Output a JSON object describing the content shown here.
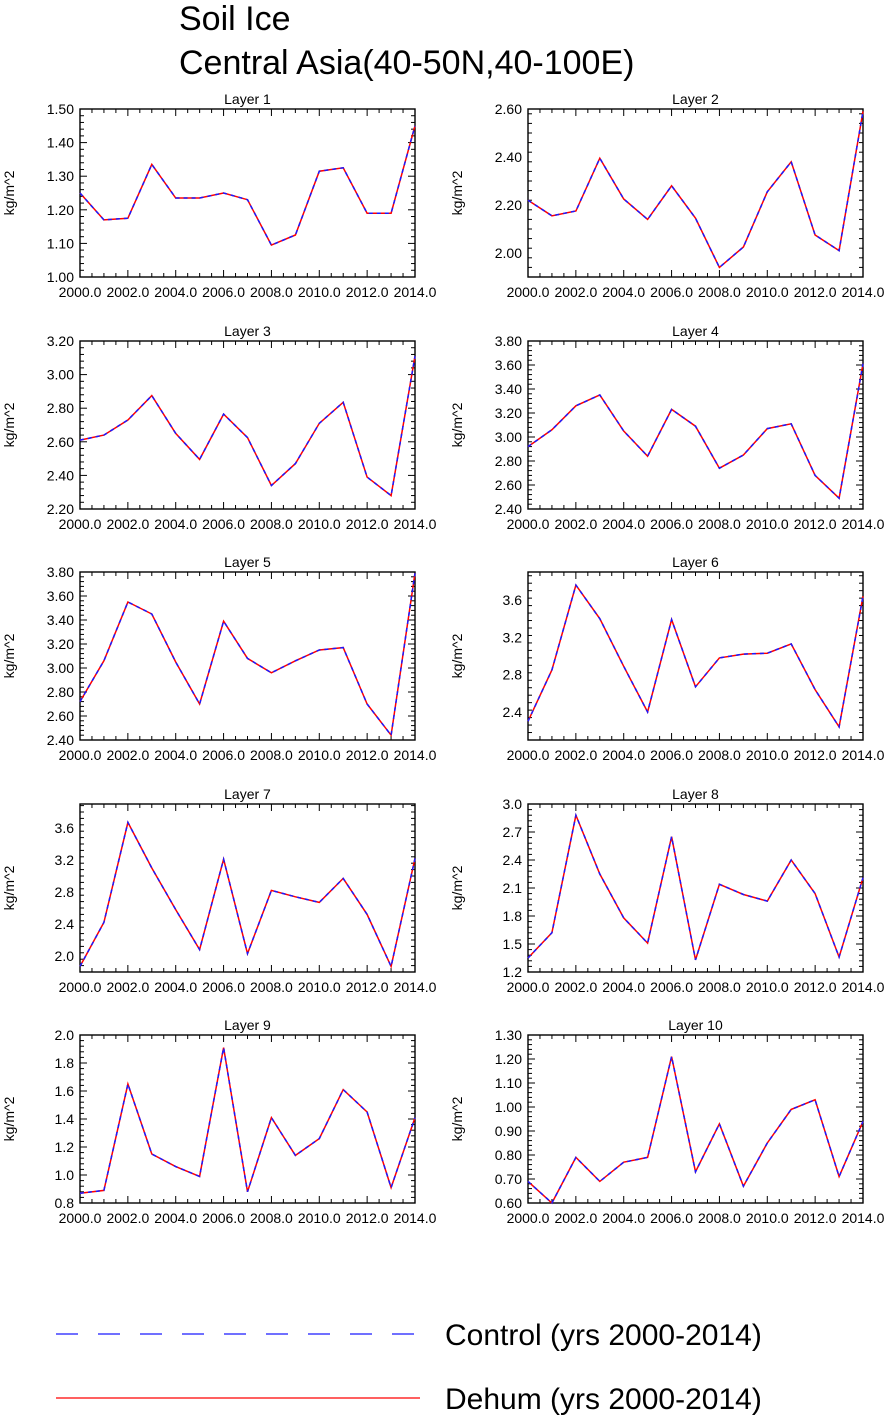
{
  "title": [
    "Soil Ice",
    "Central Asia(40-50N,40-100E)"
  ],
  "legend": [
    {
      "label": "Control (yrs 2000-2014)",
      "color": "#1a1aff",
      "style": "dashed"
    },
    {
      "label": "Dehum (yrs 2000-2014)",
      "color": "#ff0000",
      "style": "solid"
    }
  ],
  "chart_data": [
    {
      "type": "line",
      "title": "Layer 1",
      "ylabel": "kg/m^2",
      "xlim": [
        2000,
        2014
      ],
      "ylim": [
        1.0,
        1.5
      ],
      "yticks": [
        "1.00",
        "1.10",
        "1.20",
        "1.30",
        "1.40",
        "1.50"
      ],
      "ytick_values": [
        1.0,
        1.1,
        1.2,
        1.3,
        1.4,
        1.5
      ],
      "xticks": [
        "2000.0",
        "2002.0",
        "2004.0",
        "2006.0",
        "2008.0",
        "2010.0",
        "2012.0",
        "2014.0"
      ],
      "x": [
        2000,
        2001,
        2002,
        2003,
        2004,
        2005,
        2006,
        2007,
        2008,
        2009,
        2010,
        2011,
        2012,
        2013,
        2014
      ],
      "series": [
        {
          "name": "Control (yrs 2000-2014)",
          "values": [
            1.25,
            1.17,
            1.175,
            1.335,
            1.235,
            1.235,
            1.25,
            1.23,
            1.095,
            1.125,
            1.315,
            1.325,
            1.19,
            1.19,
            1.45
          ]
        },
        {
          "name": "Dehum (yrs 2000-2014)",
          "values": [
            1.25,
            1.17,
            1.175,
            1.335,
            1.235,
            1.235,
            1.25,
            1.23,
            1.095,
            1.125,
            1.315,
            1.325,
            1.19,
            1.19,
            1.45
          ]
        }
      ]
    },
    {
      "type": "line",
      "title": "Layer 2",
      "ylabel": "kg/m^2",
      "xlim": [
        2000,
        2014
      ],
      "ylim": [
        1.9,
        2.6
      ],
      "yticks": [
        "2.00",
        "2.20",
        "2.40",
        "2.60"
      ],
      "ytick_values": [
        2.0,
        2.2,
        2.4,
        2.6
      ],
      "xticks": [
        "2000.0",
        "2002.0",
        "2004.0",
        "2006.0",
        "2008.0",
        "2010.0",
        "2012.0",
        "2014.0"
      ],
      "x": [
        2000,
        2001,
        2002,
        2003,
        2004,
        2005,
        2006,
        2007,
        2008,
        2009,
        2010,
        2011,
        2012,
        2013,
        2014
      ],
      "series": [
        {
          "name": "Control (yrs 2000-2014)",
          "values": [
            2.22,
            2.155,
            2.175,
            2.395,
            2.225,
            2.14,
            2.28,
            2.145,
            1.94,
            2.025,
            2.255,
            2.38,
            2.075,
            2.01,
            2.59
          ]
        },
        {
          "name": "Dehum (yrs 2000-2014)",
          "values": [
            2.22,
            2.155,
            2.175,
            2.395,
            2.225,
            2.14,
            2.28,
            2.145,
            1.94,
            2.025,
            2.255,
            2.38,
            2.075,
            2.01,
            2.59
          ]
        }
      ]
    },
    {
      "type": "line",
      "title": "Layer 3",
      "ylabel": "kg/m^2",
      "xlim": [
        2000,
        2014
      ],
      "ylim": [
        2.2,
        3.2
      ],
      "yticks": [
        "2.20",
        "2.40",
        "2.60",
        "2.80",
        "3.00",
        "3.20"
      ],
      "ytick_values": [
        2.2,
        2.4,
        2.6,
        2.8,
        3.0,
        3.2
      ],
      "xticks": [
        "2000.0",
        "2002.0",
        "2004.0",
        "2006.0",
        "2008.0",
        "2010.0",
        "2012.0",
        "2014.0"
      ],
      "x": [
        2000,
        2001,
        2002,
        2003,
        2004,
        2005,
        2006,
        2007,
        2008,
        2009,
        2010,
        2011,
        2012,
        2013,
        2014
      ],
      "series": [
        {
          "name": "Control (yrs 2000-2014)",
          "values": [
            2.61,
            2.64,
            2.73,
            2.875,
            2.65,
            2.495,
            2.765,
            2.625,
            2.34,
            2.47,
            2.71,
            2.835,
            2.39,
            2.28,
            3.11
          ]
        },
        {
          "name": "Dehum (yrs 2000-2014)",
          "values": [
            2.61,
            2.64,
            2.73,
            2.875,
            2.65,
            2.495,
            2.765,
            2.625,
            2.34,
            2.47,
            2.71,
            2.835,
            2.39,
            2.28,
            3.11
          ]
        }
      ]
    },
    {
      "type": "line",
      "title": "Layer 4",
      "ylabel": "kg/m^2",
      "xlim": [
        2000,
        2014
      ],
      "ylim": [
        2.4,
        3.8
      ],
      "yticks": [
        "2.40",
        "2.60",
        "2.80",
        "3.00",
        "3.20",
        "3.40",
        "3.60",
        "3.80"
      ],
      "ytick_values": [
        2.4,
        2.6,
        2.8,
        3.0,
        3.2,
        3.4,
        3.6,
        3.8
      ],
      "xticks": [
        "2000.0",
        "2002.0",
        "2004.0",
        "2006.0",
        "2008.0",
        "2010.0",
        "2012.0",
        "2014.0"
      ],
      "x": [
        2000,
        2001,
        2002,
        2003,
        2004,
        2005,
        2006,
        2007,
        2008,
        2009,
        2010,
        2011,
        2012,
        2013,
        2014
      ],
      "series": [
        {
          "name": "Control (yrs 2000-2014)",
          "values": [
            2.92,
            3.06,
            3.26,
            3.35,
            3.05,
            2.84,
            3.23,
            3.09,
            2.74,
            2.85,
            3.07,
            3.11,
            2.68,
            2.49,
            3.61
          ]
        },
        {
          "name": "Dehum (yrs 2000-2014)",
          "values": [
            2.92,
            3.06,
            3.26,
            3.35,
            3.05,
            2.84,
            3.23,
            3.09,
            2.74,
            2.85,
            3.07,
            3.11,
            2.68,
            2.49,
            3.61
          ]
        }
      ]
    },
    {
      "type": "line",
      "title": "Layer 5",
      "ylabel": "kg/m^2",
      "xlim": [
        2000,
        2014
      ],
      "ylim": [
        2.4,
        3.8
      ],
      "yticks": [
        "2.40",
        "2.60",
        "2.80",
        "3.00",
        "3.20",
        "3.40",
        "3.60",
        "3.80"
      ],
      "ytick_values": [
        2.4,
        2.6,
        2.8,
        3.0,
        3.2,
        3.4,
        3.6,
        3.8
      ],
      "xticks": [
        "2000.0",
        "2002.0",
        "2004.0",
        "2006.0",
        "2008.0",
        "2010.0",
        "2012.0",
        "2014.0"
      ],
      "x": [
        2000,
        2001,
        2002,
        2003,
        2004,
        2005,
        2006,
        2007,
        2008,
        2009,
        2010,
        2011,
        2012,
        2013,
        2014
      ],
      "series": [
        {
          "name": "Control (yrs 2000-2014)",
          "values": [
            2.72,
            3.06,
            3.55,
            3.45,
            3.05,
            2.7,
            3.39,
            3.08,
            2.96,
            3.06,
            3.15,
            3.17,
            2.7,
            2.44,
            3.79
          ]
        },
        {
          "name": "Dehum (yrs 2000-2014)",
          "values": [
            2.72,
            3.06,
            3.55,
            3.45,
            3.05,
            2.7,
            3.39,
            3.08,
            2.96,
            3.06,
            3.15,
            3.17,
            2.7,
            2.44,
            3.79
          ]
        }
      ]
    },
    {
      "type": "line",
      "title": "Layer 6",
      "ylabel": "kg/m^2",
      "xlim": [
        2000,
        2014
      ],
      "ylim": [
        2.1,
        3.9
      ],
      "yticks": [
        "2.4",
        "2.8",
        "3.2",
        "3.6"
      ],
      "ytick_values": [
        2.4,
        2.8,
        3.2,
        3.6
      ],
      "xticks": [
        "2000.0",
        "2002.0",
        "2004.0",
        "2006.0",
        "2008.0",
        "2010.0",
        "2012.0",
        "2014.0"
      ],
      "x": [
        2000,
        2001,
        2002,
        2003,
        2004,
        2005,
        2006,
        2007,
        2008,
        2009,
        2010,
        2011,
        2012,
        2013,
        2014
      ],
      "series": [
        {
          "name": "Control (yrs 2000-2014)",
          "values": [
            2.3,
            2.85,
            3.76,
            3.4,
            2.89,
            2.4,
            3.39,
            2.67,
            2.98,
            3.02,
            3.03,
            3.13,
            2.64,
            2.24,
            3.64
          ]
        },
        {
          "name": "Dehum (yrs 2000-2014)",
          "values": [
            2.3,
            2.85,
            3.76,
            3.4,
            2.89,
            2.4,
            3.39,
            2.67,
            2.98,
            3.02,
            3.03,
            3.13,
            2.64,
            2.24,
            3.64
          ]
        }
      ]
    },
    {
      "type": "line",
      "title": "Layer 7",
      "ylabel": "kg/m^2",
      "xlim": [
        2000,
        2014
      ],
      "ylim": [
        1.8,
        3.9
      ],
      "yticks": [
        "2.0",
        "2.4",
        "2.8",
        "3.2",
        "3.6"
      ],
      "ytick_values": [
        2.0,
        2.4,
        2.8,
        3.2,
        3.6
      ],
      "xticks": [
        "2000.0",
        "2002.0",
        "2004.0",
        "2006.0",
        "2008.0",
        "2010.0",
        "2012.0",
        "2014.0"
      ],
      "x": [
        2000,
        2001,
        2002,
        2003,
        2004,
        2005,
        2006,
        2007,
        2008,
        2009,
        2010,
        2011,
        2012,
        2013,
        2014
      ],
      "series": [
        {
          "name": "Control (yrs 2000-2014)",
          "values": [
            1.87,
            2.42,
            3.67,
            3.1,
            2.58,
            2.08,
            3.21,
            2.03,
            2.82,
            2.74,
            2.67,
            2.97,
            2.52,
            1.87,
            3.22
          ]
        },
        {
          "name": "Dehum (yrs 2000-2014)",
          "values": [
            1.87,
            2.42,
            3.67,
            3.1,
            2.58,
            2.08,
            3.21,
            2.03,
            2.82,
            2.74,
            2.67,
            2.97,
            2.52,
            1.87,
            3.22
          ]
        }
      ]
    },
    {
      "type": "line",
      "title": "Layer 8",
      "ylabel": "kg/m^2",
      "xlim": [
        2000,
        2014
      ],
      "ylim": [
        1.2,
        3.0
      ],
      "yticks": [
        "1.2",
        "1.5",
        "1.8",
        "2.1",
        "2.4",
        "2.7",
        "3.0"
      ],
      "ytick_values": [
        1.2,
        1.5,
        1.8,
        2.1,
        2.4,
        2.7,
        3.0
      ],
      "xticks": [
        "2000.0",
        "2002.0",
        "2004.0",
        "2006.0",
        "2008.0",
        "2010.0",
        "2012.0",
        "2014.0"
      ],
      "x": [
        2000,
        2001,
        2002,
        2003,
        2004,
        2005,
        2006,
        2007,
        2008,
        2009,
        2010,
        2011,
        2012,
        2013,
        2014
      ],
      "series": [
        {
          "name": "Control (yrs 2000-2014)",
          "values": [
            1.35,
            1.62,
            2.88,
            2.25,
            1.78,
            1.51,
            2.65,
            1.33,
            2.14,
            2.03,
            1.96,
            2.4,
            2.04,
            1.36,
            2.21
          ]
        },
        {
          "name": "Dehum (yrs 2000-2014)",
          "values": [
            1.35,
            1.62,
            2.88,
            2.25,
            1.78,
            1.51,
            2.65,
            1.33,
            2.14,
            2.03,
            1.96,
            2.4,
            2.04,
            1.36,
            2.21
          ]
        }
      ]
    },
    {
      "type": "line",
      "title": "Layer 9",
      "ylabel": "kg/m^2",
      "xlim": [
        2000,
        2014
      ],
      "ylim": [
        0.8,
        2.0
      ],
      "yticks": [
        "0.8",
        "1.0",
        "1.2",
        "1.4",
        "1.6",
        "1.8",
        "2.0"
      ],
      "ytick_values": [
        0.8,
        1.0,
        1.2,
        1.4,
        1.6,
        1.8,
        2.0
      ],
      "xticks": [
        "2000.0",
        "2002.0",
        "2004.0",
        "2006.0",
        "2008.0",
        "2010.0",
        "2012.0",
        "2014.0"
      ],
      "x": [
        2000,
        2001,
        2002,
        2003,
        2004,
        2005,
        2006,
        2007,
        2008,
        2009,
        2010,
        2011,
        2012,
        2013,
        2014
      ],
      "series": [
        {
          "name": "Control (yrs 2000-2014)",
          "values": [
            0.87,
            0.89,
            1.65,
            1.15,
            1.06,
            0.99,
            1.91,
            0.88,
            1.41,
            1.14,
            1.26,
            1.61,
            1.45,
            0.91,
            1.41
          ]
        },
        {
          "name": "Dehum (yrs 2000-2014)",
          "values": [
            0.87,
            0.89,
            1.65,
            1.15,
            1.06,
            0.99,
            1.91,
            0.88,
            1.41,
            1.14,
            1.26,
            1.61,
            1.45,
            0.91,
            1.41
          ]
        }
      ]
    },
    {
      "type": "line",
      "title": "Layer 10",
      "ylabel": "kg/m^2",
      "xlim": [
        2000,
        2014
      ],
      "ylim": [
        0.6,
        1.3
      ],
      "yticks": [
        "0.60",
        "0.70",
        "0.80",
        "0.90",
        "1.00",
        "1.10",
        "1.20",
        "1.30"
      ],
      "ytick_values": [
        0.6,
        0.7,
        0.8,
        0.9,
        1.0,
        1.1,
        1.2,
        1.3
      ],
      "xticks": [
        "2000.0",
        "2002.0",
        "2004.0",
        "2006.0",
        "2008.0",
        "2010.0",
        "2012.0",
        "2014.0"
      ],
      "x": [
        2000,
        2001,
        2002,
        2003,
        2004,
        2005,
        2006,
        2007,
        2008,
        2009,
        2010,
        2011,
        2012,
        2013,
        2014
      ],
      "series": [
        {
          "name": "Control (yrs 2000-2014)",
          "values": [
            0.69,
            0.6,
            0.79,
            0.69,
            0.77,
            0.79,
            1.21,
            0.73,
            0.93,
            0.67,
            0.85,
            0.99,
            1.03,
            0.71,
            0.94
          ]
        },
        {
          "name": "Dehum (yrs 2000-2014)",
          "values": [
            0.69,
            0.6,
            0.79,
            0.69,
            0.77,
            0.79,
            1.21,
            0.73,
            0.93,
            0.67,
            0.85,
            0.99,
            1.03,
            0.71,
            0.94
          ]
        }
      ]
    }
  ]
}
